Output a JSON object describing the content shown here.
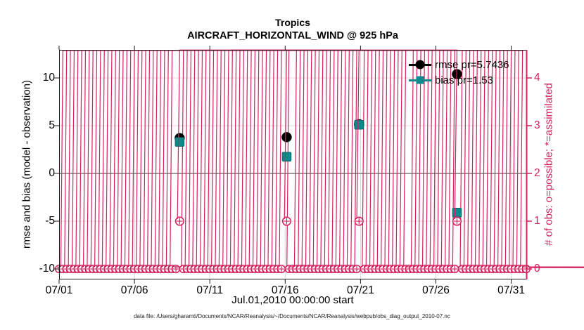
{
  "title": {
    "line1": "Tropics",
    "line2": "AIRCRAFT_HORIZONTAL_WIND @ 925 hPa"
  },
  "caption": "data file: /Users/gharamti/Documents/NCAR/Reanalysis/~/Documents/NCAR/Reanalysis/webpub/obs_diag_output_2010-07.nc",
  "colors": {
    "accent_pink": "#d4205f",
    "grid_horizontal": "#f5dde7",
    "grid_vertical": "#d6d6d6",
    "zero_line": "#9c9c9c",
    "teal": "#0c8a8c",
    "teal_edge": "#07696b",
    "black": "#000000",
    "spine": "#1a1a1a"
  },
  "chart_data": {
    "type": "scatter",
    "title": "Tropics — AIRCRAFT_HORIZONTAL_WIND @ 925 hPa",
    "x_axis": {
      "label": "Jul.01,2010 00:00:00 start",
      "tick_labels": [
        "07/01",
        "07/06",
        "07/11",
        "07/16",
        "07/21",
        "07/26",
        "07/31"
      ],
      "tick_days": [
        0,
        5,
        10,
        15,
        20,
        25,
        30
      ],
      "range_days": [
        0,
        31
      ]
    },
    "left_axis": {
      "label": "rmse and bias (model - observation)",
      "ticks": [
        10,
        5,
        0,
        -5,
        -10
      ],
      "range": [
        -11.1,
        12.94
      ]
    },
    "right_axis": {
      "label": "# of obs: o=possible; *=assimilated",
      "ticks": [
        4,
        3,
        2,
        1,
        0
      ],
      "range": [
        -0.22,
        4.59
      ]
    },
    "grid": true,
    "legend_position": "top-right",
    "series": [
      {
        "name": "rmse",
        "legend": "rmse pr=5.7436",
        "marker": "filled-circle",
        "axis": "left",
        "color": "#000000",
        "points": [
          {
            "date": "07/09",
            "day": 8.0,
            "value": 3.7
          },
          {
            "date": "07/16",
            "day": 15.1,
            "value": 3.8
          },
          {
            "date": "07/21",
            "day": 19.9,
            "value": 5.15
          },
          {
            "date": "07/27",
            "day": 26.4,
            "value": 10.4
          }
        ]
      },
      {
        "name": "bias",
        "legend": "bias pr=1.53",
        "marker": "filled-square",
        "axis": "left",
        "color": "#0c8a8c",
        "points": [
          {
            "date": "07/09",
            "day": 8.0,
            "value": 3.3
          },
          {
            "date": "07/16",
            "day": 15.1,
            "value": 1.75
          },
          {
            "date": "07/21",
            "day": 19.9,
            "value": 5.1
          },
          {
            "date": "07/27",
            "day": 26.4,
            "value": -4.1
          }
        ]
      }
    ],
    "count_events": [
      {
        "date": "07/09",
        "day": 8.0,
        "possible": 1,
        "assimilated": 1
      },
      {
        "date": "07/16",
        "day": 15.1,
        "possible": 1,
        "assimilated": 1
      },
      {
        "date": "07/21",
        "day": 19.9,
        "possible": 1,
        "assimilated": 1
      },
      {
        "date": "07/27",
        "day": 26.4,
        "possible": 1,
        "assimilated": 1
      }
    ],
    "count_background": {
      "value": 0,
      "interval_days": 0.25,
      "from": 0,
      "to": 31,
      "series": [
        "possible",
        "assimilated"
      ],
      "note": "overlapping o+* markers at count 0 for every 6-hour bin without observations"
    }
  }
}
